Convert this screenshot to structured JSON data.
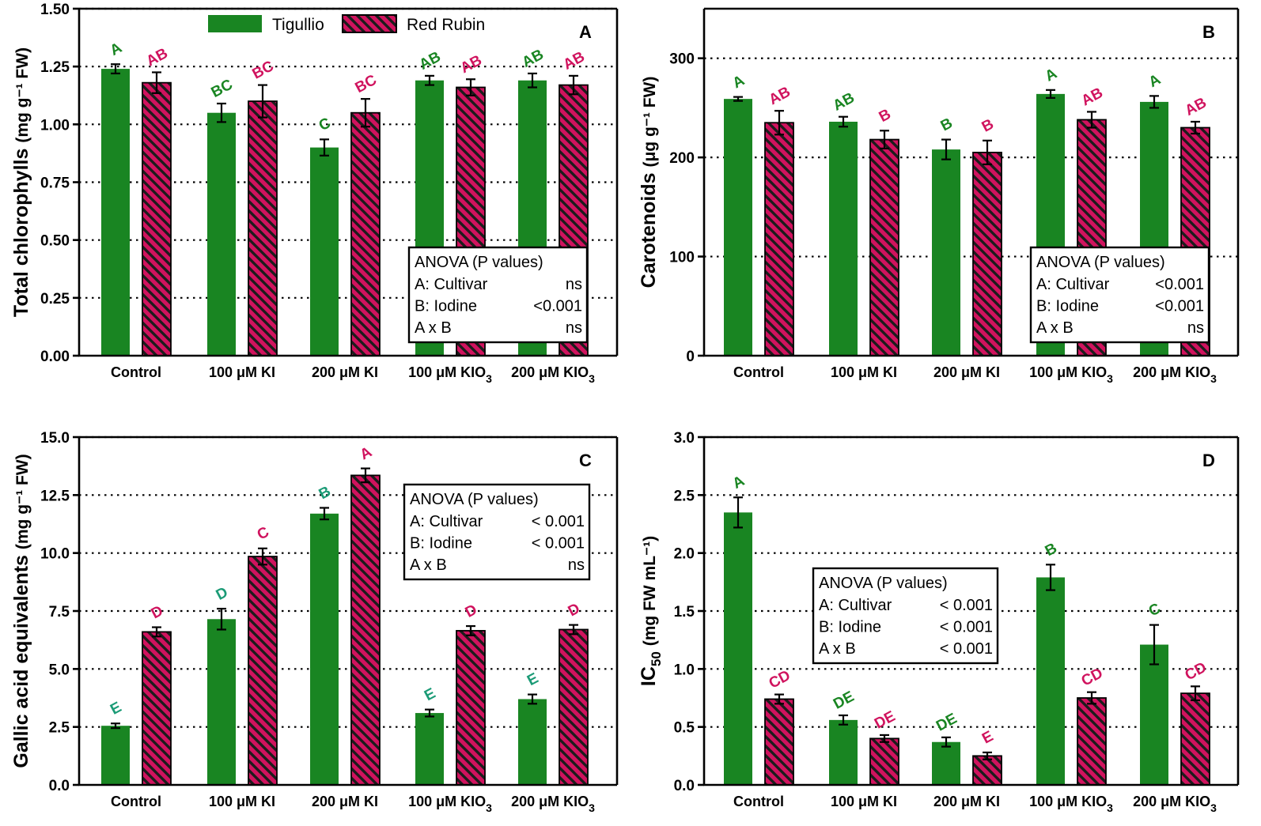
{
  "colors": {
    "tigullio": "#198522",
    "red_rubin": "#d0135e",
    "hatch": "#1c1c1c",
    "tigullio_label": "#198522",
    "red_rubin_label": "#d0135e",
    "tigullio_label_panel_c": "#1b9b76"
  },
  "legend": {
    "tigullio": "Tigullio",
    "red_rubin": "Red Rubin"
  },
  "category_parts": [
    {
      "main": "Control",
      "sub": ""
    },
    {
      "main": "100 μM KI",
      "sub": ""
    },
    {
      "main": "200 μM KI",
      "sub": ""
    },
    {
      "main": "100 μM KIO",
      "sub": "3"
    },
    {
      "main": "200 μM KIO",
      "sub": "3"
    }
  ],
  "chart_data": [
    {
      "panel": "A",
      "type": "bar",
      "categories": [
        "Control",
        "100 μM KI",
        "200 μM KI",
        "100 μM KIO3",
        "200 μM KIO3"
      ],
      "ylabel": "Total chlorophylls",
      "ylabel_units": "(mg g⁻¹ FW)",
      "ylim": [
        0,
        1.5
      ],
      "yticks": [
        "0.00",
        "0.25",
        "0.50",
        "0.75",
        "1.00",
        "1.25",
        "1.50"
      ],
      "series": [
        {
          "name": "Tigullio",
          "values": [
            1.24,
            1.05,
            0.9,
            1.19,
            1.19
          ],
          "errors": [
            0.02,
            0.04,
            0.035,
            0.02,
            0.03
          ],
          "letters": [
            "A",
            "BC",
            "C",
            "AB",
            "AB"
          ]
        },
        {
          "name": "Red Rubin",
          "values": [
            1.18,
            1.1,
            1.05,
            1.16,
            1.17
          ],
          "errors": [
            0.045,
            0.07,
            0.06,
            0.035,
            0.04
          ],
          "letters": [
            "AB",
            "BC",
            "BC",
            "AB",
            "AB"
          ]
        }
      ],
      "anova": {
        "title": "ANOVA (P values)",
        "rows": [
          [
            "A: Cultivar",
            "ns"
          ],
          [
            "B: Iodine",
            "<0.001"
          ],
          [
            "A x B",
            "ns"
          ]
        ]
      }
    },
    {
      "panel": "B",
      "type": "bar",
      "categories": [
        "Control",
        "100 μM KI",
        "200 μM KI",
        "100 μM KIO3",
        "200 μM KIO3"
      ],
      "ylabel": "Carotenoids",
      "ylabel_units": "(μg g⁻¹ FW)",
      "ylim": [
        0,
        350
      ],
      "yticks": [
        "0",
        "100",
        "200",
        "300"
      ],
      "series": [
        {
          "name": "Tigullio",
          "values": [
            259,
            236,
            208,
            264,
            256
          ],
          "errors": [
            2,
            5,
            10,
            4,
            6
          ],
          "letters": [
            "A",
            "AB",
            "B",
            "A",
            "A"
          ]
        },
        {
          "name": "Red Rubin",
          "values": [
            235,
            218,
            205,
            238,
            230
          ],
          "errors": [
            12,
            9,
            12,
            8,
            6
          ],
          "letters": [
            "AB",
            "B",
            "B",
            "AB",
            "AB"
          ]
        }
      ],
      "anova": {
        "title": "ANOVA (P values)",
        "rows": [
          [
            "A: Cultivar",
            "<0.001"
          ],
          [
            "B: Iodine",
            "<0.001"
          ],
          [
            "A x B",
            "ns"
          ]
        ]
      }
    },
    {
      "panel": "C",
      "type": "bar",
      "categories": [
        "Control",
        "100 μM KI",
        "200 μM KI",
        "100 μM KIO3",
        "200 μM KIO3"
      ],
      "ylabel": "Gallic acid equivalents",
      "ylabel_units": "(mg g⁻¹ FW)",
      "ylim": [
        0,
        15
      ],
      "yticks": [
        "0.0",
        "2.5",
        "5.0",
        "7.5",
        "10.0",
        "12.5",
        "15.0"
      ],
      "series": [
        {
          "name": "Tigullio",
          "values": [
            2.55,
            7.15,
            11.7,
            3.1,
            3.7
          ],
          "errors": [
            0.1,
            0.45,
            0.25,
            0.15,
            0.2
          ],
          "letters": [
            "E",
            "D",
            "B",
            "E",
            "E"
          ]
        },
        {
          "name": "Red Rubin",
          "values": [
            6.6,
            9.85,
            13.35,
            6.65,
            6.7
          ],
          "errors": [
            0.2,
            0.35,
            0.3,
            0.2,
            0.2
          ],
          "letters": [
            "D",
            "C",
            "A",
            "D",
            "D"
          ]
        }
      ],
      "anova": {
        "title": "ANOVA (P values)",
        "rows": [
          [
            "A: Cultivar",
            "< 0.001"
          ],
          [
            "B: Iodine",
            "< 0.001"
          ],
          [
            "A x B",
            "ns"
          ]
        ]
      }
    },
    {
      "panel": "D",
      "type": "bar",
      "categories": [
        "Control",
        "100 μM KI",
        "200 μM KI",
        "100 μM KIO3",
        "200 μM KIO3"
      ],
      "ylabel": "IC",
      "ylabel_sub": "50",
      "ylabel_units": "(mg FW mL⁻¹)",
      "ylim": [
        0,
        3
      ],
      "yticks": [
        "0.0",
        "0.5",
        "1.0",
        "1.5",
        "2.0",
        "2.5",
        "3.0"
      ],
      "series": [
        {
          "name": "Tigullio",
          "values": [
            2.35,
            0.56,
            0.37,
            1.79,
            1.21
          ],
          "errors": [
            0.13,
            0.04,
            0.04,
            0.11,
            0.17
          ],
          "letters": [
            "A",
            "DE",
            "DE",
            "B",
            "C"
          ]
        },
        {
          "name": "Red Rubin",
          "values": [
            0.74,
            0.4,
            0.25,
            0.75,
            0.79
          ],
          "errors": [
            0.04,
            0.03,
            0.03,
            0.05,
            0.06
          ],
          "letters": [
            "CD",
            "DE",
            "E",
            "CD",
            "CD"
          ]
        }
      ],
      "anova": {
        "title": "ANOVA (P values)",
        "rows": [
          [
            "A: Cultivar",
            "< 0.001"
          ],
          [
            "B: Iodine",
            "< 0.001"
          ],
          [
            "A x B",
            "< 0.001"
          ]
        ]
      }
    }
  ]
}
